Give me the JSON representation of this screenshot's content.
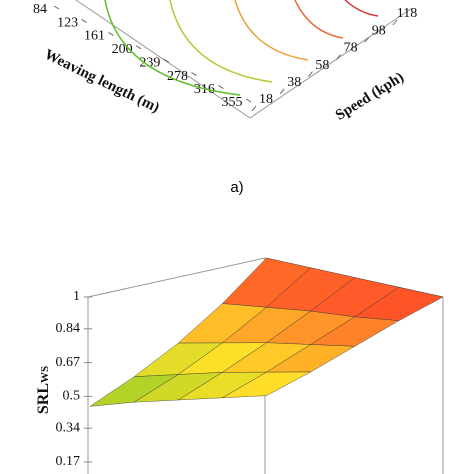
{
  "chart_data": [
    {
      "type": "contour3d",
      "caption": "a)",
      "x_label": "Weaving length (m)",
      "xticks": [
        84,
        123,
        161,
        200,
        239,
        278,
        316,
        355
      ],
      "xlim": [
        84,
        355
      ],
      "y_label": "Speed (kph)",
      "yticks": [
        18,
        38,
        58,
        78,
        98,
        118
      ],
      "ylim": [
        18,
        118
      ],
      "contour_levels": [
        0.5,
        0.6,
        0.7,
        0.8,
        0.9
      ],
      "contour_colors": [
        "#5fbf2a",
        "#b6c834",
        "#e8a23a",
        "#e76a3a",
        "#d8323a"
      ]
    },
    {
      "type": "surface3d",
      "z_label": "SRL",
      "z_label_sub": "WS",
      "zlim": [
        0.17,
        1
      ],
      "zticks": [
        1,
        0.84,
        0.67,
        0.5,
        0.34,
        0.17
      ],
      "z": [
        [
          0.45,
          0.52,
          0.58,
          0.64,
          0.7
        ],
        [
          0.55,
          0.61,
          0.67,
          0.72,
          0.77
        ],
        [
          0.67,
          0.72,
          0.77,
          0.81,
          0.85
        ],
        [
          0.82,
          0.85,
          0.88,
          0.9,
          0.93
        ],
        [
          1.0,
          1.0,
          1.0,
          1.0,
          1.0
        ]
      ]
    }
  ]
}
